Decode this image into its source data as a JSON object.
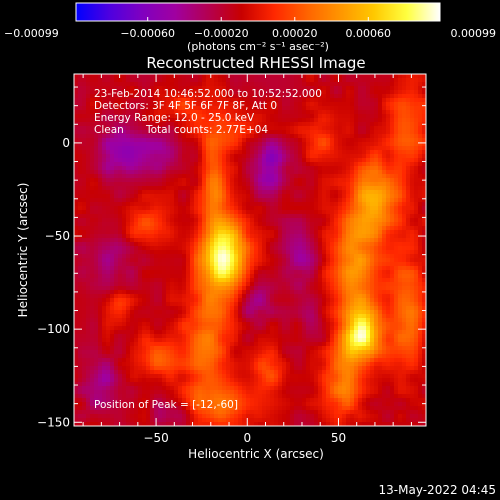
{
  "chart_data": {
    "type": "heatmap",
    "title": "Reconstructed RHESSI Image",
    "xlabel": "Heliocentric X (arcsec)",
    "ylabel": "Heliocentric Y (arcsec)",
    "xlim": [
      -95,
      98
    ],
    "ylim": [
      -152,
      37
    ],
    "x_ticks": [
      {
        "value": -50,
        "label": "−50"
      },
      {
        "value": 0,
        "label": "0"
      },
      {
        "value": 50,
        "label": "50"
      }
    ],
    "y_ticks": [
      {
        "value": 0,
        "label": "0"
      },
      {
        "value": -50,
        "label": "−50"
      },
      {
        "value": -100,
        "label": "−100"
      },
      {
        "value": -150,
        "label": "−150"
      }
    ],
    "colorbar": {
      "min": -0.00099,
      "max": 0.00099,
      "units": "(photons cm⁻² s⁻¹ asec⁻²)",
      "ticks": [
        {
          "value": -0.00099,
          "label": "−0.00099"
        },
        {
          "value": -0.0006,
          "label": "−0.00060"
        },
        {
          "value": -0.0002,
          "label": "−0.00020"
        },
        {
          "value": 0.0002,
          "label": "0.00020"
        },
        {
          "value": 0.0006,
          "label": "0.00060"
        },
        {
          "value": 0.00099,
          "label": "0.00099"
        }
      ],
      "palette": [
        "#0000ff",
        "#4d00e0",
        "#8000c0",
        "#a000a0",
        "#b40050",
        "#c80000",
        "#ff2800",
        "#ff6400",
        "#ff9600",
        "#ffc800",
        "#ffff40",
        "#ffffff"
      ]
    },
    "annotations": {
      "time_range": "23-Feb-2014 10:46:52.000 to 10:52:52.000",
      "detectors": "Detectors: 3F 4F 5F 6F 7F 8F, Att 0",
      "energy": "Energy Range: 12.0 - 25.0 keV",
      "method": "Clean",
      "total_counts": "Total counts: 2.77E+04",
      "peak": "Position of Peak = [-12,-60]"
    },
    "peak": [
      -12,
      -60
    ],
    "sources": [
      {
        "x": -13,
        "y": -60,
        "sx": 9,
        "sy": 14,
        "amp": 0.00105
      },
      {
        "x": -18,
        "y": -22,
        "sx": 5,
        "sy": 14,
        "amp": 0.00045
      },
      {
        "x": -22,
        "y": -105,
        "sx": 9,
        "sy": 20,
        "amp": 0.00045
      },
      {
        "x": -15,
        "y": -140,
        "sx": 14,
        "sy": 9,
        "amp": 0.0004
      },
      {
        "x": 63,
        "y": -103,
        "sx": 8,
        "sy": 11,
        "amp": 0.00095
      },
      {
        "x": 70,
        "y": -30,
        "sx": 10,
        "sy": 14,
        "amp": 0.00065
      },
      {
        "x": 58,
        "y": -65,
        "sx": 10,
        "sy": 18,
        "amp": 0.00055
      },
      {
        "x": 52,
        "y": -130,
        "sx": 7,
        "sy": 14,
        "amp": 0.00045
      },
      {
        "x": 88,
        "y": -90,
        "sx": 8,
        "sy": 22,
        "amp": 0.0004
      },
      {
        "x": 88,
        "y": 10,
        "sx": 9,
        "sy": 14,
        "amp": 0.00035
      },
      {
        "x": -55,
        "y": -45,
        "sx": 10,
        "sy": 8,
        "amp": 0.00035
      },
      {
        "x": -50,
        "y": -115,
        "sx": 9,
        "sy": 8,
        "amp": 0.00035
      },
      {
        "x": -70,
        "y": -88,
        "sx": 6,
        "sy": 6,
        "amp": 0.00025
      },
      {
        "x": 12,
        "y": -122,
        "sx": 6,
        "sy": 8,
        "amp": 0.0003
      },
      {
        "x": -12,
        "y": 5,
        "sx": 12,
        "sy": 8,
        "amp": 0.0003
      },
      {
        "x": 40,
        "y": 2,
        "sx": 8,
        "sy": 10,
        "amp": 0.00025
      },
      {
        "x": -35,
        "y": 20,
        "sx": 10,
        "sy": 6,
        "amp": 0.00025
      },
      {
        "x": -68,
        "y": -5,
        "sx": 10,
        "sy": 10,
        "amp": -0.00045
      },
      {
        "x": 12,
        "y": -12,
        "sx": 7,
        "sy": 10,
        "amp": -0.00045
      },
      {
        "x": -45,
        "y": -5,
        "sx": 8,
        "sy": 7,
        "amp": -0.0003
      },
      {
        "x": 30,
        "y": -60,
        "sx": 8,
        "sy": 12,
        "amp": -0.0003
      },
      {
        "x": -75,
        "y": -60,
        "sx": 10,
        "sy": 12,
        "amp": -0.00025
      },
      {
        "x": 5,
        "y": -85,
        "sx": 7,
        "sy": 8,
        "amp": -0.0003
      },
      {
        "x": -80,
        "y": -130,
        "sx": 8,
        "sy": 10,
        "amp": -0.0003
      },
      {
        "x": 35,
        "y": -95,
        "sx": 5,
        "sy": 8,
        "amp": -0.0002
      },
      {
        "x": -40,
        "y": -145,
        "sx": 8,
        "sy": 6,
        "amp": -0.00025
      }
    ],
    "baseline": -0.00012,
    "texture": 9e-05
  },
  "footer_date": "13-May-2022 04:45"
}
